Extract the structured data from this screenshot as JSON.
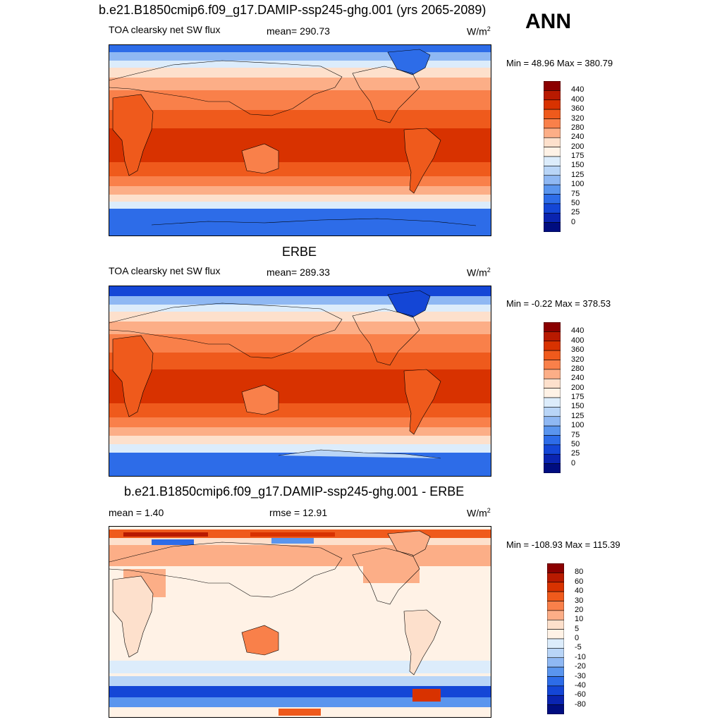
{
  "header": {
    "title": "b.e21.B1850cmip6.f09_g17.DAMIP-ssp245-ghg.001 (yrs 2065-2089)",
    "season": "ANN"
  },
  "panels": [
    {
      "id": "model",
      "title": "",
      "variable": "TOA clearsky net SW flux",
      "stat": "mean= 290.73",
      "units": "W/m",
      "units_sup": "2",
      "minmax": "Min =  48.96 Max = 380.79",
      "colorbar": {
        "colors": [
          "#8b0000",
          "#b81a00",
          "#d83200",
          "#ef5a1c",
          "#f9804a",
          "#fcae87",
          "#fde0cc",
          "#fff2e6",
          "#dcecfb",
          "#b9d5f7",
          "#8fb8f3",
          "#5a95ee",
          "#2d6ce8",
          "#1446d6",
          "#0a24b0",
          "#000d80"
        ],
        "labels": [
          "440",
          "400",
          "360",
          "320",
          "280",
          "240",
          "200",
          "175",
          "150",
          "125",
          "100",
          "75",
          "50",
          "25",
          "0"
        ]
      }
    },
    {
      "id": "obs",
      "title": "ERBE",
      "variable": "TOA clearsky net SW flux",
      "stat": "mean= 289.33",
      "units": "W/m",
      "units_sup": "2",
      "minmax": "Min =  -0.22 Max = 378.53",
      "colorbar": {
        "colors": [
          "#8b0000",
          "#b81a00",
          "#d83200",
          "#ef5a1c",
          "#f9804a",
          "#fcae87",
          "#fde0cc",
          "#fff2e6",
          "#dcecfb",
          "#b9d5f7",
          "#8fb8f3",
          "#5a95ee",
          "#2d6ce8",
          "#1446d6",
          "#0a24b0",
          "#000d80"
        ],
        "labels": [
          "440",
          "400",
          "360",
          "320",
          "280",
          "240",
          "200",
          "175",
          "150",
          "125",
          "100",
          "75",
          "50",
          "25",
          "0"
        ]
      }
    },
    {
      "id": "diff",
      "title": "b.e21.B1850cmip6.f09_g17.DAMIP-ssp245-ghg.001 - ERBE",
      "stat_left": "mean =   1.40",
      "stat": "rmse =  12.91",
      "units": "W/m",
      "units_sup": "2",
      "minmax": "Min = -108.93 Max = 115.39",
      "colorbar": {
        "colors": [
          "#8b0000",
          "#b81a00",
          "#d83200",
          "#ef5a1c",
          "#f9804a",
          "#fcae87",
          "#fde0cc",
          "#fff2e6",
          "#dcecfb",
          "#b9d5f7",
          "#8fb8f3",
          "#5a95ee",
          "#2d6ce8",
          "#1446d6",
          "#0a24b0",
          "#000d80"
        ],
        "labels": [
          "80",
          "60",
          "40",
          "30",
          "20",
          "10",
          "5",
          "0",
          "-5",
          "-10",
          "-20",
          "-30",
          "-40",
          "-60",
          "-80"
        ]
      }
    }
  ]
}
